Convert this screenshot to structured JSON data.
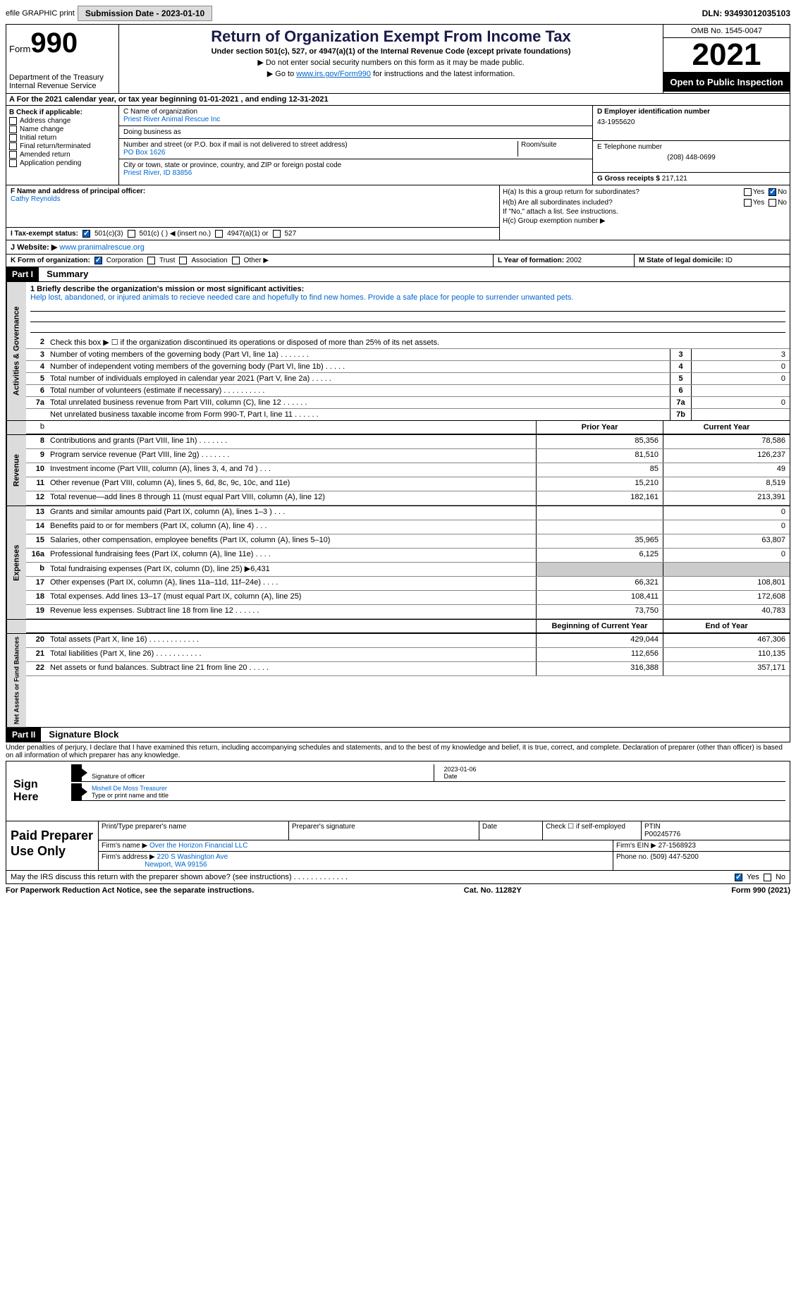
{
  "topbar": {
    "efile": "efile GRAPHIC print",
    "submission_label": "Submission Date - 2023-01-10",
    "dln": "DLN: 93493012035103"
  },
  "header": {
    "form_label": "Form",
    "form_num": "990",
    "dept": "Department of the Treasury",
    "irs": "Internal Revenue Service",
    "title": "Return of Organization Exempt From Income Tax",
    "subtitle": "Under section 501(c), 527, or 4947(a)(1) of the Internal Revenue Code (except private foundations)",
    "instr1": "▶ Do not enter social security numbers on this form as it may be made public.",
    "instr2_pre": "▶ Go to ",
    "instr2_link": "www.irs.gov/Form990",
    "instr2_post": " for instructions and the latest information.",
    "omb": "OMB No. 1545-0047",
    "year": "2021",
    "open": "Open to Public Inspection"
  },
  "rowA": {
    "text": "A For the 2021 calendar year, or tax year beginning 01-01-2021    , and ending 12-31-2021"
  },
  "sectionB": {
    "label": "B Check if applicable:",
    "opts": [
      "Address change",
      "Name change",
      "Initial return",
      "Final return/terminated",
      "Amended return",
      "Application pending"
    ]
  },
  "sectionC": {
    "name_label": "C Name of organization",
    "name": "Priest River Animal Rescue Inc",
    "dba_label": "Doing business as",
    "dba": "",
    "addr_label": "Number and street (or P.O. box if mail is not delivered to street address)",
    "room_label": "Room/suite",
    "addr": "PO Box 1626",
    "city_label": "City or town, state or province, country, and ZIP or foreign postal code",
    "city": "Priest River, ID  83856"
  },
  "sectionD": {
    "ein_label": "D Employer identification number",
    "ein": "43-1955620",
    "tel_label": "E Telephone number",
    "tel": "(208) 448-0699",
    "gross_label": "G Gross receipts $",
    "gross": "217,121"
  },
  "sectionF": {
    "label": "F Name and address of principal officer:",
    "name": "Cathy Reynolds"
  },
  "sectionH": {
    "a_label": "H(a)  Is this a group return for subordinates?",
    "b_label": "H(b)  Are all subordinates included?",
    "b_note": "If \"No,\" attach a list. See instructions.",
    "c_label": "H(c)  Group exemption number ▶",
    "yes": "Yes",
    "no": "No"
  },
  "sectionI": {
    "label": "I    Tax-exempt status:",
    "opt1": "501(c)(3)",
    "opt2": "501(c) (  ) ◀ (insert no.)",
    "opt3": "4947(a)(1) or",
    "opt4": "527"
  },
  "sectionJ": {
    "label": "J   Website: ▶",
    "value": "www.pranimalrescue.org"
  },
  "sectionK": {
    "label": "K Form of organization:",
    "corp": "Corporation",
    "trust": "Trust",
    "assoc": "Association",
    "other": "Other ▶"
  },
  "sectionL": {
    "label": "L Year of formation:",
    "value": "2002"
  },
  "sectionM": {
    "label": "M State of legal domicile:",
    "value": "ID"
  },
  "part1": {
    "header": "Part I",
    "title": "Summary",
    "side_gov": "Activities & Governance",
    "side_rev": "Revenue",
    "side_exp": "Expenses",
    "side_net": "Net Assets or Fund Balances",
    "line1_label": "1  Briefly describe the organization's mission or most significant activities:",
    "mission": "Help lost, abandoned, or injured animals to recieve needed care and hopefully to find new homes. Provide a safe place for people to surrender unwanted pets.",
    "line2": "Check this box ▶ ☐ if the organization discontinued its operations or disposed of more than 25% of its net assets.",
    "lines_gov": [
      {
        "n": "3",
        "t": "Number of voting members of the governing body (Part VI, line 1a)  .    .    .    .    .    .    .",
        "b": "3",
        "v": "3"
      },
      {
        "n": "4",
        "t": "Number of independent voting members of the governing body (Part VI, line 1b)  .    .    .    .    .",
        "b": "4",
        "v": "0"
      },
      {
        "n": "5",
        "t": "Total number of individuals employed in calendar year 2021 (Part V, line 2a)  .    .    .    .    .",
        "b": "5",
        "v": "0"
      },
      {
        "n": "6",
        "t": "Total number of volunteers (estimate if necessary)    .    .    .    .    .    .    .    .    .    .",
        "b": "6",
        "v": ""
      },
      {
        "n": "7a",
        "t": "Total unrelated business revenue from Part VIII, column (C), line 12    .    .    .    .    .    .",
        "b": "7a",
        "v": "0"
      },
      {
        "n": "",
        "t": "Net unrelated business taxable income from Form 990-T, Part I, line 11  .    .    .    .    .    .",
        "b": "7b",
        "v": ""
      }
    ],
    "col_prior": "Prior Year",
    "col_curr": "Current Year",
    "lines_rev": [
      {
        "n": "8",
        "t": "Contributions and grants (Part VIII, line 1h)    .    .    .    .    .    .    .",
        "p": "85,356",
        "c": "78,586"
      },
      {
        "n": "9",
        "t": "Program service revenue (Part VIII, line 2g)    .    .    .    .    .    .    .",
        "p": "81,510",
        "c": "126,237"
      },
      {
        "n": "10",
        "t": "Investment income (Part VIII, column (A), lines 3, 4, and 7d )    .    .    .",
        "p": "85",
        "c": "49"
      },
      {
        "n": "11",
        "t": "Other revenue (Part VIII, column (A), lines 5, 6d, 8c, 9c, 10c, and 11e)",
        "p": "15,210",
        "c": "8,519"
      },
      {
        "n": "12",
        "t": "Total revenue—add lines 8 through 11 (must equal Part VIII, column (A), line 12)",
        "p": "182,161",
        "c": "213,391"
      }
    ],
    "lines_exp": [
      {
        "n": "13",
        "t": "Grants and similar amounts paid (Part IX, column (A), lines 1–3 )    .    .    .",
        "p": "",
        "c": "0"
      },
      {
        "n": "14",
        "t": "Benefits paid to or for members (Part IX, column (A), line 4)    .    .    .",
        "p": "",
        "c": "0"
      },
      {
        "n": "15",
        "t": "Salaries, other compensation, employee benefits (Part IX, column (A), lines 5–10)",
        "p": "35,965",
        "c": "63,807"
      },
      {
        "n": "16a",
        "t": "Professional fundraising fees (Part IX, column (A), line 11e)    .    .    .    .",
        "p": "6,125",
        "c": "0"
      },
      {
        "n": "b",
        "t": "Total fundraising expenses (Part IX, column (D), line 25) ▶6,431",
        "p": "SHADE",
        "c": "SHADE"
      },
      {
        "n": "17",
        "t": "Other expenses (Part IX, column (A), lines 11a–11d, 11f–24e)    .    .    .    .",
        "p": "66,321",
        "c": "108,801"
      },
      {
        "n": "18",
        "t": "Total expenses. Add lines 13–17 (must equal Part IX, column (A), line 25)",
        "p": "108,411",
        "c": "172,608"
      },
      {
        "n": "19",
        "t": "Revenue less expenses. Subtract line 18 from line 12  .    .    .    .    .    .",
        "p": "73,750",
        "c": "40,783"
      }
    ],
    "col_begin": "Beginning of Current Year",
    "col_end": "End of Year",
    "lines_net": [
      {
        "n": "20",
        "t": "Total assets (Part X, line 16)  .    .    .    .    .    .    .    .    .    .    .    .",
        "p": "429,044",
        "c": "467,306"
      },
      {
        "n": "21",
        "t": "Total liabilities (Part X, line 26)  .    .    .    .    .    .    .    .    .    .    .",
        "p": "112,656",
        "c": "110,135"
      },
      {
        "n": "22",
        "t": "Net assets or fund balances. Subtract line 21 from line 20  .    .    .    .    .",
        "p": "316,388",
        "c": "357,171"
      }
    ]
  },
  "part2": {
    "header": "Part II",
    "title": "Signature Block",
    "declare": "Under penalties of perjury, I declare that I have examined this return, including accompanying schedules and statements, and to the best of my knowledge and belief, it is true, correct, and complete. Declaration of preparer (other than officer) is based on all information of which preparer has any knowledge.",
    "sign_here": "Sign Here",
    "sig_officer_label": "Signature of officer",
    "sig_date_label": "Date",
    "sig_date": "2023-01-06",
    "sig_name": "Mishell De Moss  Treasurer",
    "sig_name_label": "Type or print name and title"
  },
  "paid": {
    "title": "Paid Preparer Use Only",
    "print_label": "Print/Type preparer's name",
    "sig_label": "Preparer's signature",
    "date_label": "Date",
    "check_label": "Check ☐ if self-employed",
    "ptin_label": "PTIN",
    "ptin": "P00245776",
    "firm_name_label": "Firm's name    ▶",
    "firm_name": "Over the Horizon Financial LLC",
    "firm_ein_label": "Firm's EIN ▶",
    "firm_ein": "27-1568923",
    "firm_addr_label": "Firm's address ▶",
    "firm_addr1": "220 S Washington Ave",
    "firm_addr2": "Newport, WA  99156",
    "phone_label": "Phone no.",
    "phone": "(509) 447-5200"
  },
  "footer": {
    "discuss": "May the IRS discuss this return with the preparer shown above? (see instructions)   .    .    .    .    .    .    .    .    .    .    .    .    .",
    "yes": "Yes",
    "no": "No",
    "paperwork": "For Paperwork Reduction Act Notice, see the separate instructions.",
    "cat": "Cat. No. 11282Y",
    "form": "Form 990 (2021)"
  },
  "colors": {
    "link": "#0066cc",
    "shade": "#cccccc",
    "side": "#dcdcdc"
  }
}
